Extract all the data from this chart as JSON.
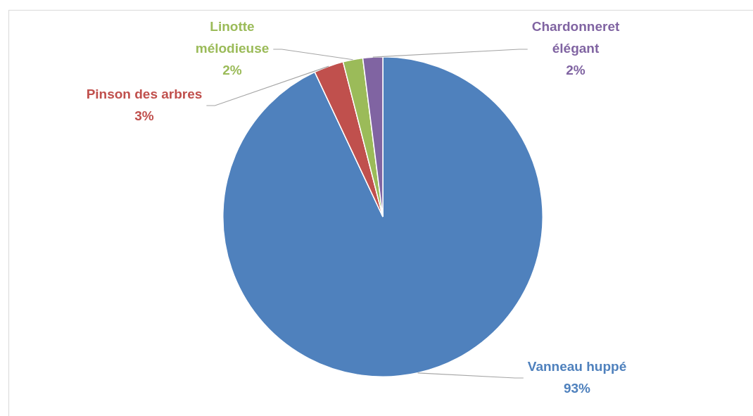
{
  "chart_data": {
    "type": "pie",
    "categories": [
      "Vanneau huppé",
      "Pinson des arbres",
      "Linotte mélodieuse",
      "Chardonneret élégant"
    ],
    "values": [
      93,
      3,
      2,
      2
    ],
    "colors": [
      "#4f81bd",
      "#c0504d",
      "#9bbb59",
      "#8064a2"
    ],
    "value_labels": [
      "93%",
      "3%",
      "2%",
      "2%"
    ],
    "legend": false
  }
}
